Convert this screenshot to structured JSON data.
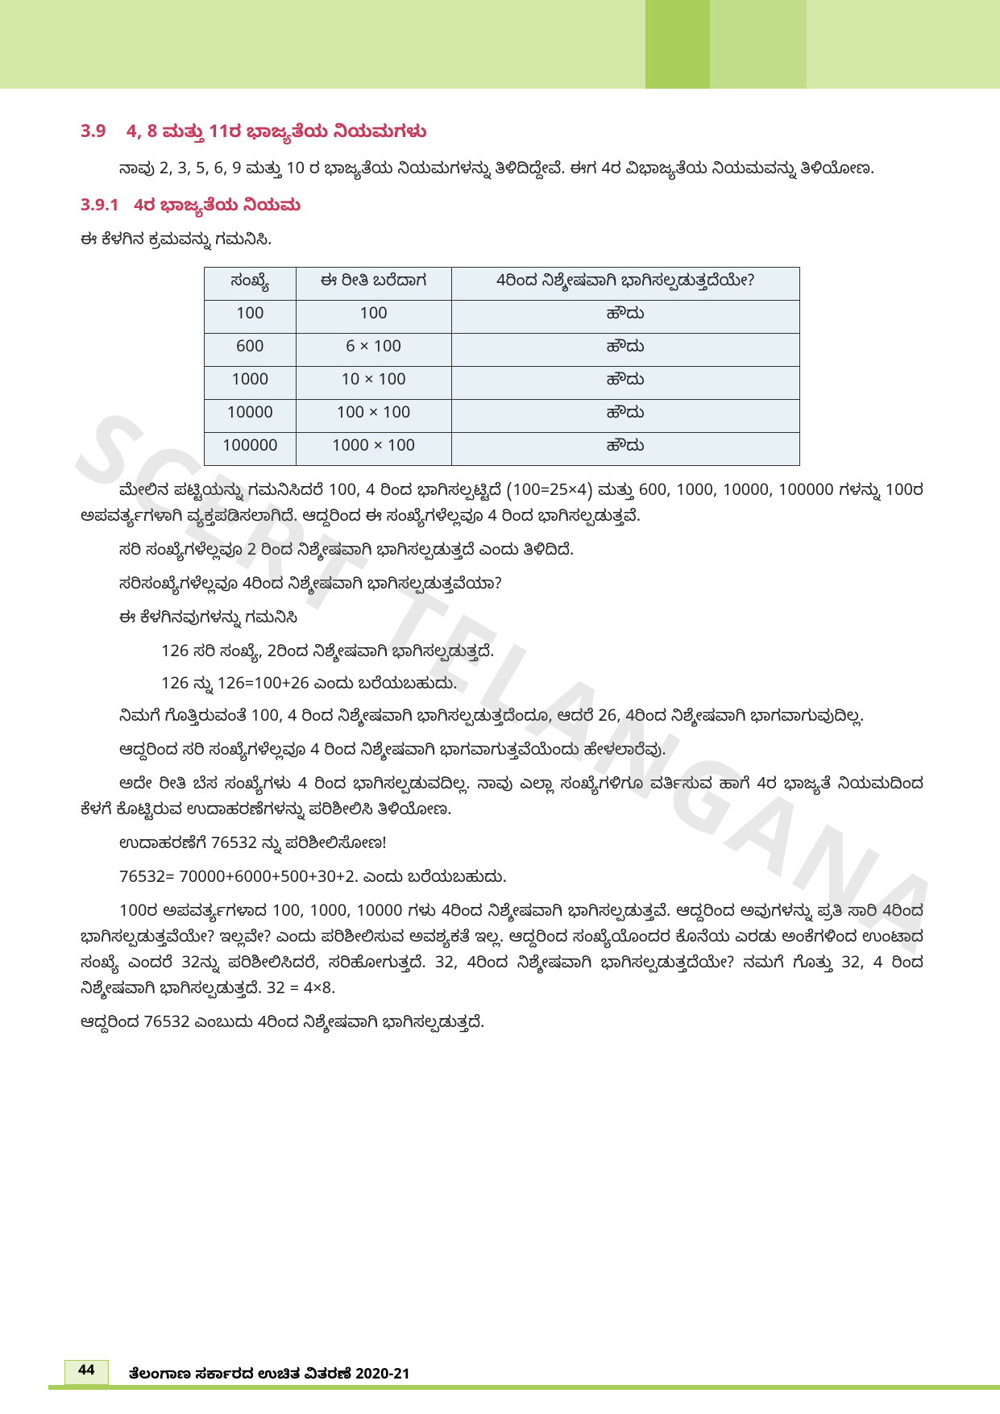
{
  "banner": {
    "colors": [
      "#d4e8a8",
      "#a9cf5a",
      "#c2dd8a"
    ]
  },
  "heading": {
    "num": "3.9",
    "title": "4, 8 ಮತ್ತು 11ರ ಭಾಜ್ಯತೆಯ ನಿಯಮಗಳು"
  },
  "intro": "ನಾವು 2, 3, 5, 6, 9 ಮತ್ತು  10 ರ ಭಾಜ್ಯತೆಯ ನಿಯಮಗಳನ್ನು ತಿಳಿದಿದ್ದೇವೆ. ಈಗ 4ರ ವಿಭಾಜ್ಯತೆಯ ನಿಯಮವನ್ನು ತಿಳಿಯೋಣ.",
  "sub": {
    "num": "3.9.1",
    "title": "4ರ ಭಾಜ್ಯತೆಯ ನಿಯಮ"
  },
  "observe": "ಈ ಕೆಳಗಿನ ಕ್ರಮವನ್ನು ಗಮನಿಸಿ.",
  "table": {
    "headers": [
      "ಸಂಖ್ಯೆ",
      "ಈ ರೀತಿ ಬರೆದಾಗ",
      "4ರಿಂದ ನಿಶ್ಶೇಷವಾಗಿ ಭಾಗಿಸಲ್ಪಡುತ್ತದೆಯೇ?"
    ],
    "rows": [
      [
        "100",
        "100",
        "ಹೌದು"
      ],
      [
        "600",
        "6 × 100",
        "ಹೌದು"
      ],
      [
        "1000",
        "10 × 100",
        "ಹೌದು"
      ],
      [
        "10000",
        "100 × 100",
        "ಹೌದು"
      ],
      [
        "100000",
        "1000 × 100",
        "ಹೌದು"
      ]
    ]
  },
  "p1": "ಮೇಲಿನ ಪಟ್ಟಿಯನ್ನು ಗಮನಿಸಿದರೆ 100, 4 ರಿಂದ ಭಾಗಿಸಲ್ಪಟ್ಟಿದೆ (100=25×4) ಮತ್ತು 600, 1000, 10000, 100000 ಗಳನ್ನು   100ರ ಅಪವರ್ತ್ಯಗಳಾಗಿ ವ್ಯಕ್ತಪಡಿಸಲಾಗಿದೆ. ಆದ್ದರಿಂದ ಈ ಸಂಖ್ಯೆಗಳೆಲ್ಲವೂ 4 ರಿಂದ ಭಾಗಿಸಲ್ಪಡುತ್ತವೆ.",
  "p2": "ಸರಿ ಸಂಖ್ಯೆಗಳೆಲ್ಲವೂ 2 ರಿಂದ ನಿಶ್ಶೇಷವಾಗಿ ಭಾಗಿಸಲ್ಪಡುತ್ತದೆ ಎಂದು ತಿಳಿದಿದೆ.",
  "p3": "ಸರಿಸಂಖ್ಯೆಗಳೆಲ್ಲವೂ 4ರಿಂದ ನಿಶ್ಶೇಷವಾಗಿ ಭಾಗಿಸಲ್ಪಡುತ್ತವೆಯಾ?",
  "p4": "ಈ ಕೆಳಗಿನವುಗಳನ್ನು ಗಮನಿಸಿ",
  "p5": "126 ಸರಿ ಸಂಖ್ಯೆ, 2ರಿಂದ ನಿಶ್ಶೇಷವಾಗಿ ಭಾಗಿಸಲ್ಪಡುತ್ತದೆ.",
  "p6": "126 ನ್ನು 126=100+26 ಎಂದು ಬರೆಯಬಹುದು.",
  "p7": "ನಿಮಗೆ ಗೊತ್ತಿರುವಂತೆ 100, 4 ರಿಂದ ನಿಶ್ಶೇಷವಾಗಿ ಭಾಗಿಸಲ್ಪಡುತ್ತದೆಂದೂ, ಆದರೆ 26, 4ರಿಂದ ನಿಶ್ಶೇಷವಾಗಿ ಭಾಗವಾಗುವುದಿಲ್ಲ.",
  "p8": "ಆದ್ದರಿಂದ ಸರಿ ಸಂಖ್ಯೆಗಳೆಲ್ಲವೂ 4 ರಿಂದ ನಿಶ್ಶೇಷವಾಗಿ ಭಾಗವಾಗುತ್ತವೆಯೆಂದು ಹೇಳಲಾರೆವು.",
  "p9": "ಅದೇ ರೀತಿ ಬೆಸ ಸಂಖ್ಯೆಗಳು 4 ರಿಂದ ಭಾಗಿಸಲ್ಪಡುವದಿಲ್ಲ. ನಾವು ಎಲ್ಲಾ ಸಂಖ್ಯೆಗಳಿಗೂ ವರ್ತಿಸುವ ಹಾಗೆ 4ರ ಭಾಜ್ಯತೆ ನಿಯಮದಿಂದ ಕೆಳಗೆ ಕೊಟ್ಟಿರುವ ಉದಾಹರಣೆಗಳನ್ನು ಪರಿಶೀಲಿಸಿ ತಿಳಿಯೋಣ.",
  "p10": "ಉದಾಹರಣೆಗೆ 76532 ನ್ನು ಪರಿಶೀಲಿಸೋಣ!",
  "p11": "76532= 70000+6000+500+30+2.  ಎಂದು ಬರೆಯಬಹುದು.",
  "p12": "100ರ ಅಪವರ್ತ್ಯಗಳಾದ 100, 1000, 10000 ಗಳು 4ರಿಂದ ನಿಶ್ಶೇಷವಾಗಿ ಭಾಗಿಸಲ್ಪಡುತ್ತವೆ. ಆದ್ದರಿಂದ ಅವುಗಳನ್ನು ಪ್ರತಿ ಸಾರಿ 4ರಿಂದ ಭಾಗಿಸಲ್ಪಡುತ್ತವೆಯೇ? ಇಲ್ಲವೇ? ಎಂದು ಪರಿಶೀಲಿಸುವ ಅವಶ್ಯಕತೆ ಇಲ್ಲ. ಆದ್ದರಿಂದ ಸಂಖ್ಯೆಯೊಂದರ ಕೊನೆಯ ಎರಡು ಅಂಕೆಗಳಿಂದ ಉಂಟಾದ ಸಂಖ್ಯೆ ಎಂದರೆ 32ನ್ನು ಪರಿಶೀಲಿಸಿದರೆ, ಸರಿಹೋಗುತ್ತದೆ. 32, 4ರಿಂದ ನಿಶ್ಶೇಷವಾಗಿ ಭಾಗಿಸಲ್ಪಡುತ್ತದೆಯೇ? ನಮಗೆ ಗೊತ್ತು 32, 4 ರಿಂದ ನಿಶ್ಶೇಷವಾಗಿ ಭಾಗಿಸಲ್ಪಡುತ್ತದೆ.  32 = 4×8.",
  "p13": "ಆದ್ದರಿಂದ  76532 ಎಂಬುದು  4ರಿಂದ ನಿಶ್ಶೇಷವಾಗಿ ಭಾಗಿಸಲ್ಪಡುತ್ತದೆ.",
  "watermark": "SCERT TELANGANA",
  "footer": {
    "page": "44",
    "text": "ತೆಲಂಗಾಣ ಸರ್ಕಾರದ ಉಚಿತ ವಿತರಣೆ 2020-21"
  }
}
